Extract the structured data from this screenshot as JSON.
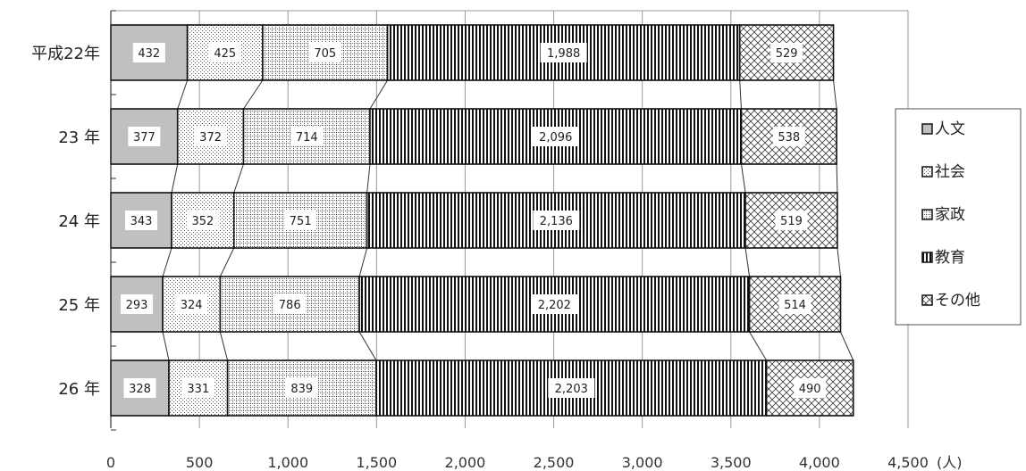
{
  "chart_data": {
    "type": "bar",
    "orientation": "horizontal",
    "stacked": true,
    "categories": [
      "平成22年",
      "23 年",
      "24 年",
      "25 年",
      "26 年"
    ],
    "series": [
      {
        "name": "人文",
        "values": [
          432,
          377,
          343,
          293,
          328
        ]
      },
      {
        "name": "社会",
        "values": [
          425,
          372,
          352,
          324,
          331
        ]
      },
      {
        "name": "家政",
        "values": [
          705,
          714,
          751,
          786,
          839
        ]
      },
      {
        "name": "教育",
        "values": [
          1988,
          2096,
          2136,
          2202,
          2203
        ]
      },
      {
        "name": "その他",
        "values": [
          529,
          538,
          519,
          514,
          490
        ]
      }
    ],
    "value_labels": [
      [
        "432",
        "425",
        "705",
        "1,988",
        "529"
      ],
      [
        "377",
        "372",
        "714",
        "2,096",
        "538"
      ],
      [
        "343",
        "352",
        "751",
        "2,136",
        "519"
      ],
      [
        "293",
        "324",
        "786",
        "2,202",
        "514"
      ],
      [
        "328",
        "331",
        "839",
        "2,203",
        "490"
      ]
    ],
    "xlim": [
      0,
      4500
    ],
    "x_ticks": [
      0,
      500,
      1000,
      1500,
      2000,
      2500,
      3000,
      3500,
      4000,
      4500
    ],
    "x_tick_labels": [
      "0",
      "500",
      "1,000",
      "1,500",
      "2,000",
      "2,500",
      "3,000",
      "3,500",
      "4,000",
      "4,500"
    ],
    "unit_label": "(人)",
    "grid": true,
    "legend": "right",
    "series_connector_lines": true
  }
}
